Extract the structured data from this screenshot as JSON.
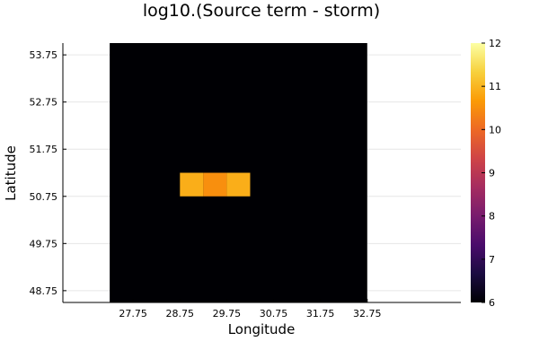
{
  "chart_data": {
    "type": "heatmap",
    "title": "log10.(Source term - storm)",
    "xlabel": "Longitude",
    "ylabel": "Latitude",
    "x_ticks": [
      "27.75",
      "28.75",
      "29.75",
      "30.75",
      "31.75",
      "32.75"
    ],
    "y_ticks": [
      "48.75",
      "49.75",
      "50.75",
      "51.75",
      "52.75",
      "53.75"
    ],
    "xlim": [
      26.25,
      34.75
    ],
    "ylim": [
      48.5,
      54.0
    ],
    "grid_extent": {
      "lon": [
        27.25,
        32.75
      ],
      "lat": [
        48.5,
        54.0
      ]
    },
    "background_value": 6,
    "colorbar": {
      "ticks": [
        "6",
        "7",
        "8",
        "9",
        "10",
        "11",
        "12"
      ],
      "min": 6,
      "max": 12,
      "colormap": "inferno",
      "colors": [
        "#000004",
        "#1b0c41",
        "#4a0c6b",
        "#781c6d",
        "#a52c60",
        "#cf4446",
        "#ed6925",
        "#fb9b06",
        "#f7d13d",
        "#fcffa4"
      ]
    },
    "cells": [
      {
        "lon": 29.0,
        "lat": 51.0,
        "value": 10.9
      },
      {
        "lon": 29.5,
        "lat": 51.0,
        "value": 10.5
      },
      {
        "lon": 30.0,
        "lat": 51.0,
        "value": 10.9
      }
    ]
  }
}
